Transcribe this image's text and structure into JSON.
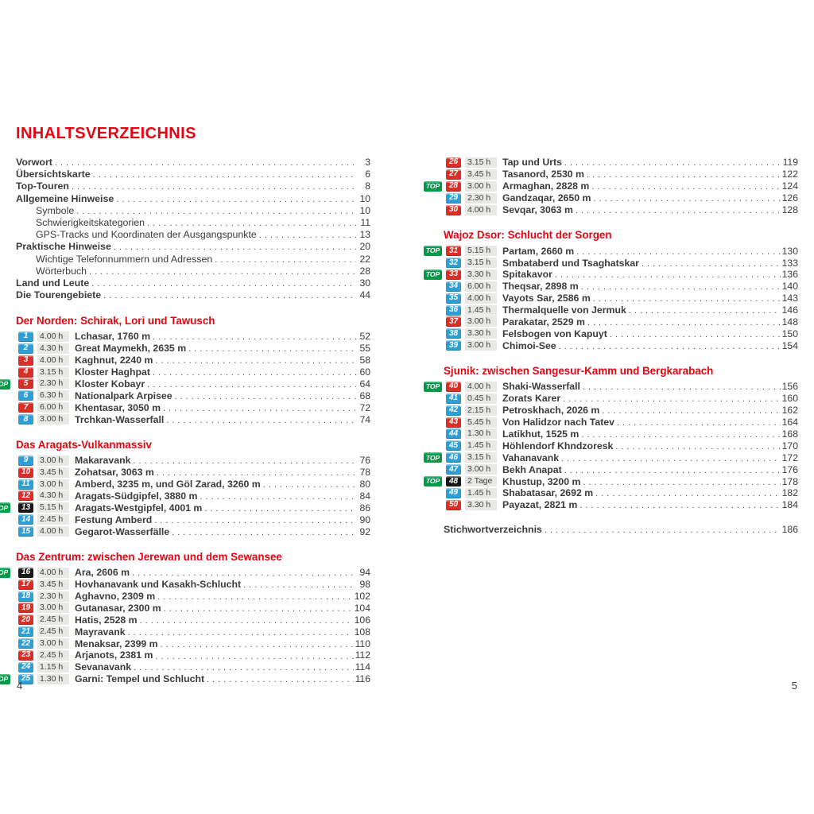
{
  "title": "INHALTSVERZEICHNIS",
  "labels": {
    "top_badge": "TOP"
  },
  "colors": {
    "accent": "#e30613",
    "ink": "#3b3b3b",
    "badge_blue": "#2e9fd6",
    "badge_red": "#dc2e26",
    "badge_black": "#181818",
    "top-green": "#009a47",
    "time-bg": "#e8e8e5"
  },
  "front_matter": [
    {
      "label": "Vorwort",
      "page": "3",
      "indent": 0
    },
    {
      "label": "Übersichtskarte",
      "page": "6",
      "indent": 0
    },
    {
      "label": "Top-Touren",
      "page": "8",
      "indent": 0
    },
    {
      "label": "Allgemeine Hinweise",
      "page": "10",
      "indent": 0
    },
    {
      "label": "Symbole",
      "page": "10",
      "indent": 1
    },
    {
      "label": "Schwierigkeitskategorien",
      "page": "11",
      "indent": 1
    },
    {
      "label": "GPS-Tracks und Koordinaten der Ausgangspunkte",
      "page": "13",
      "indent": 1
    },
    {
      "label": "Praktische Hinweise",
      "page": "20",
      "indent": 0
    },
    {
      "label": "Wichtige Telefonnummern und Adressen",
      "page": "22",
      "indent": 1
    },
    {
      "label": "Wörterbuch",
      "page": "28",
      "indent": 1
    },
    {
      "label": "Land und Leute",
      "page": "30",
      "indent": 0
    },
    {
      "label": "Die Tourengebiete",
      "page": "44",
      "indent": 0
    }
  ],
  "columns": {
    "left": {
      "page_number": "4",
      "sections": [
        {
          "title": "Der Norden: Schirak, Lori und Tawusch",
          "entries": [
            {
              "num": "1",
              "badge": "blue",
              "top": false,
              "time": "4.00 h",
              "name": "Lchasar, 1760 m",
              "page": "52"
            },
            {
              "num": "2",
              "badge": "blue",
              "top": false,
              "time": "4.30 h",
              "name": "Great Maymekh, 2635 m",
              "page": "55"
            },
            {
              "num": "3",
              "badge": "red",
              "top": false,
              "time": "4.00 h",
              "name": "Kaghnut, 2240 m",
              "page": "58"
            },
            {
              "num": "4",
              "badge": "red",
              "top": false,
              "time": "3.15 h",
              "name": "Kloster Haghpat",
              "page": "60"
            },
            {
              "num": "5",
              "badge": "red",
              "top": true,
              "time": "2.30 h",
              "name": "Kloster Kobayr",
              "page": "64"
            },
            {
              "num": "6",
              "badge": "blue",
              "top": false,
              "time": "6.30 h",
              "name": "Nationalpark Arpisee",
              "page": "68"
            },
            {
              "num": "7",
              "badge": "red",
              "top": false,
              "time": "6.00 h",
              "name": "Khentasar, 3050 m",
              "page": "72"
            },
            {
              "num": "8",
              "badge": "blue",
              "top": false,
              "time": "3.00 h",
              "name": "Trchkan-Wasserfall",
              "page": "74"
            }
          ]
        },
        {
          "title": "Das Aragats-Vulkanmassiv",
          "entries": [
            {
              "num": "9",
              "badge": "blue",
              "top": false,
              "time": "3.00 h",
              "name": "Makaravank",
              "page": "76"
            },
            {
              "num": "10",
              "badge": "red",
              "top": false,
              "time": "3.45 h",
              "name": "Zohatsar, 3063 m",
              "page": "78"
            },
            {
              "num": "11",
              "badge": "blue",
              "top": false,
              "time": "3.00 h",
              "name": "Amberd, 3235 m, und Göl Zarad, 3260 m",
              "page": "80"
            },
            {
              "num": "12",
              "badge": "red",
              "top": false,
              "time": "4.30 h",
              "name": "Aragats-Südgipfel, 3880 m",
              "page": "84"
            },
            {
              "num": "13",
              "badge": "black",
              "top": true,
              "time": "5.15 h",
              "name": "Aragats-Westgipfel, 4001 m",
              "page": "86"
            },
            {
              "num": "14",
              "badge": "blue",
              "top": false,
              "time": "2.45 h",
              "name": "Festung Amberd",
              "page": "90"
            },
            {
              "num": "15",
              "badge": "blue",
              "top": false,
              "time": "4.00 h",
              "name": "Gegarot-Wasserfälle",
              "page": "92"
            }
          ]
        },
        {
          "title": "Das Zentrum: zwischen Jerewan und dem Sewansee",
          "entries": [
            {
              "num": "16",
              "badge": "black",
              "top": true,
              "time": "4.00 h",
              "name": "Ara, 2606 m",
              "page": "94"
            },
            {
              "num": "17",
              "badge": "red",
              "top": false,
              "time": "3.45 h",
              "name": "Hovhanavank und Kasakh-Schlucht",
              "page": "98"
            },
            {
              "num": "18",
              "badge": "blue",
              "top": false,
              "time": "2.30 h",
              "name": "Aghavno, 2309 m",
              "page": "102"
            },
            {
              "num": "19",
              "badge": "red",
              "top": false,
              "time": "3.00 h",
              "name": "Gutanasar, 2300 m",
              "page": "104"
            },
            {
              "num": "20",
              "badge": "red",
              "top": false,
              "time": "2.45 h",
              "name": "Hatis, 2528 m",
              "page": "106"
            },
            {
              "num": "21",
              "badge": "blue",
              "top": false,
              "time": "2.45 h",
              "name": "Mayravank",
              "page": "108"
            },
            {
              "num": "22",
              "badge": "blue",
              "top": false,
              "time": "3.00 h",
              "name": "Menaksar, 2399 m",
              "page": "110"
            },
            {
              "num": "23",
              "badge": "red",
              "top": false,
              "time": "2.45 h",
              "name": "Arjanots, 2381 m",
              "page": "112"
            },
            {
              "num": "24",
              "badge": "blue",
              "top": false,
              "time": "1.15 h",
              "name": "Sevanavank",
              "page": "114"
            },
            {
              "num": "25",
              "badge": "blue",
              "top": true,
              "time": "1.30 h",
              "name": "Garni: Tempel und Schlucht",
              "page": "116"
            }
          ]
        }
      ]
    },
    "right": {
      "page_number": "5",
      "index_entry": {
        "label": "Stichwortverzeichnis",
        "page": "186"
      },
      "sections": [
        {
          "title": "",
          "entries": [
            {
              "num": "26",
              "badge": "red",
              "top": false,
              "time": "3.15 h",
              "name": "Tap und Urts",
              "page": "119"
            },
            {
              "num": "27",
              "badge": "red",
              "top": false,
              "time": "3.45 h",
              "name": "Tasanord, 2530 m",
              "page": "122"
            },
            {
              "num": "28",
              "badge": "red",
              "top": true,
              "time": "3.00 h",
              "name": "Armaghan, 2828 m",
              "page": "124"
            },
            {
              "num": "29",
              "badge": "blue",
              "top": false,
              "time": "2.30 h",
              "name": "Gandzaqar, 2650 m",
              "page": "126"
            },
            {
              "num": "30",
              "badge": "red",
              "top": false,
              "time": "4.00 h",
              "name": "Sevqar, 3063 m",
              "page": "128"
            }
          ]
        },
        {
          "title": "Wajoz Dsor: Schlucht der Sorgen",
          "entries": [
            {
              "num": "31",
              "badge": "red",
              "top": true,
              "time": "5.15 h",
              "name": "Partam, 2660 m",
              "page": "130"
            },
            {
              "num": "32",
              "badge": "blue",
              "top": false,
              "time": "3.15 h",
              "name": "Smbataberd und Tsaghatskar",
              "page": "133"
            },
            {
              "num": "33",
              "badge": "red",
              "top": true,
              "time": "3.30 h",
              "name": "Spitakavor",
              "page": "136"
            },
            {
              "num": "34",
              "badge": "blue",
              "top": false,
              "time": "6.00 h",
              "name": "Theqsar, 2898 m",
              "page": "140"
            },
            {
              "num": "35",
              "badge": "blue",
              "top": false,
              "time": "4.00 h",
              "name": "Vayots Sar, 2586 m",
              "page": "143"
            },
            {
              "num": "36",
              "badge": "blue",
              "top": false,
              "time": "1.45 h",
              "name": "Thermalquelle von Jermuk",
              "page": "146"
            },
            {
              "num": "37",
              "badge": "red",
              "top": false,
              "time": "3.00 h",
              "name": "Parakatar, 2529 m",
              "page": "148"
            },
            {
              "num": "38",
              "badge": "blue",
              "top": false,
              "time": "3.30 h",
              "name": "Felsbogen von Kapuyt",
              "page": "150"
            },
            {
              "num": "39",
              "badge": "blue",
              "top": false,
              "time": "3.00 h",
              "name": "Chimoi-See",
              "page": "154"
            }
          ]
        },
        {
          "title": "Sjunik: zwischen Sangesur-Kamm und Bergkarabach",
          "entries": [
            {
              "num": "40",
              "badge": "red",
              "top": true,
              "time": "4.00 h",
              "name": "Shaki-Wasserfall",
              "page": "156"
            },
            {
              "num": "41",
              "badge": "blue",
              "top": false,
              "time": "0.45 h",
              "name": "Zorats Karer",
              "page": "160"
            },
            {
              "num": "42",
              "badge": "blue",
              "top": false,
              "time": "2.15 h",
              "name": "Petroskhach, 2026 m",
              "page": "162"
            },
            {
              "num": "43",
              "badge": "red",
              "top": false,
              "time": "5.45 h",
              "name": "Von Halidzor nach Tatev",
              "page": "164"
            },
            {
              "num": "44",
              "badge": "blue",
              "top": false,
              "time": "1.30 h",
              "name": "Latikhut, 1525 m",
              "page": "168"
            },
            {
              "num": "45",
              "badge": "blue",
              "top": false,
              "time": "1.45 h",
              "name": "Höhlendorf Khndzoresk",
              "page": "170"
            },
            {
              "num": "46",
              "badge": "blue",
              "top": true,
              "time": "3.15 h",
              "name": "Vahanavank",
              "page": "172"
            },
            {
              "num": "47",
              "badge": "blue",
              "top": false,
              "time": "3.00 h",
              "name": "Bekh Anapat",
              "page": "176"
            },
            {
              "num": "48",
              "badge": "black",
              "top": true,
              "time": "2 Tage",
              "name": "Khustup, 3200 m",
              "page": "178"
            },
            {
              "num": "49",
              "badge": "blue",
              "top": false,
              "time": "1.45 h",
              "name": "Shabatasar, 2692 m",
              "page": "182"
            },
            {
              "num": "50",
              "badge": "red",
              "top": false,
              "time": "3.30 h",
              "name": "Payazat, 2821 m",
              "page": "184"
            }
          ]
        }
      ]
    }
  }
}
